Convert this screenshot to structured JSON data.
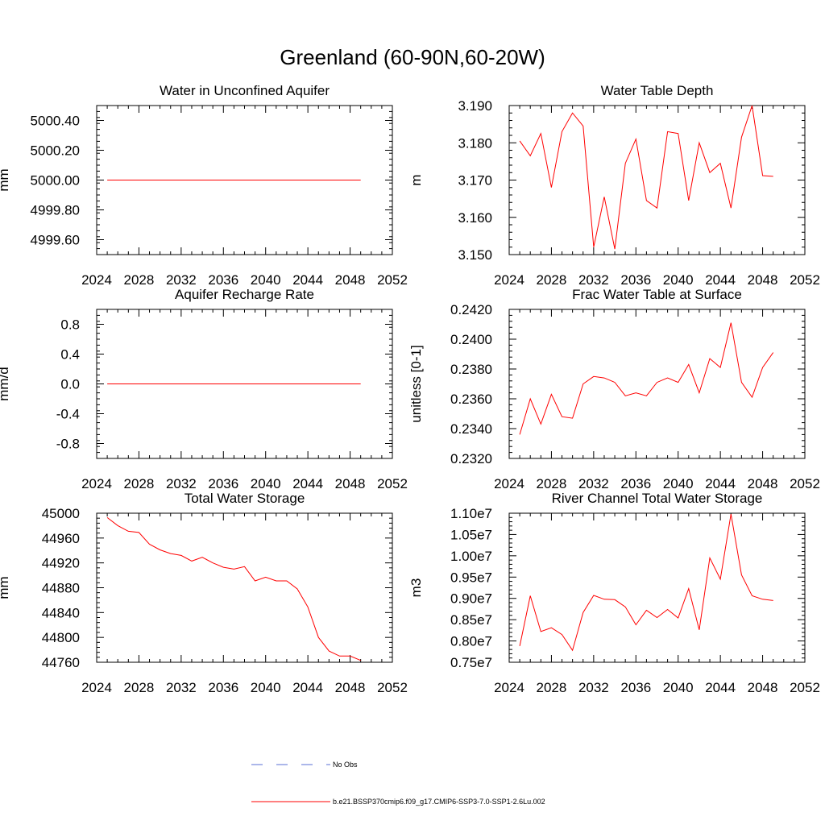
{
  "figure": {
    "title": "Greenland (60-90N,60-20W)",
    "legend": [
      {
        "label": "No Obs",
        "style": "dashed",
        "color": "#5a6fd6"
      },
      {
        "label": "b.e21.BSSP370cmip6.f09_g17.CMIP6-SSP3-7.0-SSP1-2.6Lu.002",
        "style": "solid",
        "color": "#ff0000"
      }
    ],
    "series_color": "#ff0000"
  },
  "chart_data": [
    {
      "type": "line",
      "title": "Water in Unconfined Aquifer",
      "ylabel": "mm",
      "xlim": [
        2024,
        2052
      ],
      "xticks": [
        "2024",
        "2028",
        "2032",
        "2036",
        "2040",
        "2044",
        "2048",
        "2052"
      ],
      "ylim": [
        4999.5,
        5000.5
      ],
      "yticks": [
        "4999.60",
        "4999.80",
        "5000.00",
        "5000.20",
        "5000.40"
      ],
      "x": [
        2025,
        2026,
        2027,
        2028,
        2029,
        2030,
        2031,
        2032,
        2033,
        2034,
        2035,
        2036,
        2037,
        2038,
        2039,
        2040,
        2041,
        2042,
        2043,
        2044,
        2045,
        2046,
        2047,
        2048,
        2049
      ],
      "values": [
        5000,
        5000,
        5000,
        5000,
        5000,
        5000,
        5000,
        5000,
        5000,
        5000,
        5000,
        5000,
        5000,
        5000,
        5000,
        5000,
        5000,
        5000,
        5000,
        5000,
        5000,
        5000,
        5000,
        5000,
        5000
      ]
    },
    {
      "type": "line",
      "title": "Water Table Depth",
      "ylabel": "m",
      "xlim": [
        2024,
        2052
      ],
      "xticks": [
        "2024",
        "2028",
        "2032",
        "2036",
        "2040",
        "2044",
        "2048",
        "2052"
      ],
      "ylim": [
        3.15,
        3.19
      ],
      "yticks": [
        "3.150",
        "3.160",
        "3.170",
        "3.180",
        "3.190"
      ],
      "x": [
        2025,
        2026,
        2027,
        2028,
        2029,
        2030,
        2031,
        2032,
        2033,
        2034,
        2035,
        2036,
        2037,
        2038,
        2039,
        2040,
        2041,
        2042,
        2043,
        2044,
        2045,
        2046,
        2047,
        2048,
        2049
      ],
      "values": [
        3.1805,
        3.1765,
        3.1825,
        3.168,
        3.183,
        3.188,
        3.1845,
        3.152,
        3.1655,
        3.1515,
        3.1745,
        3.181,
        3.1645,
        3.1625,
        3.183,
        3.1825,
        3.1645,
        3.18,
        3.172,
        3.1745,
        3.1625,
        3.1815,
        3.19,
        3.1712,
        3.171
      ]
    },
    {
      "type": "line",
      "title": "Aquifer Recharge Rate",
      "ylabel": "mm/d",
      "xlim": [
        2024,
        2052
      ],
      "xticks": [
        "2024",
        "2028",
        "2032",
        "2036",
        "2040",
        "2044",
        "2048",
        "2052"
      ],
      "ylim": [
        -1.0,
        1.0
      ],
      "yticks": [
        "-0.8",
        "-0.4",
        "0.0",
        "0.4",
        "0.8"
      ],
      "x": [
        2025,
        2026,
        2027,
        2028,
        2029,
        2030,
        2031,
        2032,
        2033,
        2034,
        2035,
        2036,
        2037,
        2038,
        2039,
        2040,
        2041,
        2042,
        2043,
        2044,
        2045,
        2046,
        2047,
        2048,
        2049
      ],
      "values": [
        0,
        0,
        0,
        0,
        0,
        0,
        0,
        0,
        0,
        0,
        0,
        0,
        0,
        0,
        0,
        0,
        0,
        0,
        0,
        0,
        0,
        0,
        0,
        0,
        0
      ]
    },
    {
      "type": "line",
      "title": "Frac Water Table at Surface",
      "ylabel": "unitless [0-1]",
      "xlim": [
        2024,
        2052
      ],
      "xticks": [
        "2024",
        "2028",
        "2032",
        "2036",
        "2040",
        "2044",
        "2048",
        "2052"
      ],
      "ylim": [
        0.232,
        0.242
      ],
      "yticks": [
        "0.2320",
        "0.2340",
        "0.2360",
        "0.2380",
        "0.2400",
        "0.2420"
      ],
      "x": [
        2025,
        2026,
        2027,
        2028,
        2029,
        2030,
        2031,
        2032,
        2033,
        2034,
        2035,
        2036,
        2037,
        2038,
        2039,
        2040,
        2041,
        2042,
        2043,
        2044,
        2045,
        2046,
        2047,
        2048,
        2049
      ],
      "values": [
        0.2336,
        0.236,
        0.2343,
        0.2363,
        0.2348,
        0.2347,
        0.237,
        0.2375,
        0.2374,
        0.2371,
        0.2362,
        0.2364,
        0.2362,
        0.2371,
        0.2374,
        0.2371,
        0.2383,
        0.2364,
        0.2387,
        0.2381,
        0.2411,
        0.2371,
        0.2361,
        0.2381,
        0.2391
      ]
    },
    {
      "type": "line",
      "title": "Total Water Storage",
      "ylabel": "mm",
      "xlim": [
        2024,
        2052
      ],
      "xticks": [
        "2024",
        "2028",
        "2032",
        "2036",
        "2040",
        "2044",
        "2048",
        "2052"
      ],
      "ylim": [
        44760,
        45000
      ],
      "yticks": [
        "44760",
        "44800",
        "44840",
        "44880",
        "44920",
        "44960",
        "45000"
      ],
      "x": [
        2025,
        2026,
        2027,
        2028,
        2029,
        2030,
        2031,
        2032,
        2033,
        2034,
        2035,
        2036,
        2037,
        2038,
        2039,
        2040,
        2041,
        2042,
        2043,
        2044,
        2045,
        2046,
        2047,
        2048,
        2049
      ],
      "values": [
        44993,
        44980,
        44971,
        44969,
        44950,
        44941,
        44935,
        44932,
        44923,
        44929,
        44920,
        44913,
        44910,
        44914,
        44891,
        44897,
        44891,
        44891,
        44878,
        44849,
        44800,
        44778,
        44770,
        44770,
        44763
      ]
    },
    {
      "type": "line",
      "title": "River Channel Total Water Storage",
      "ylabel": "m3",
      "xlim": [
        2024,
        2052
      ],
      "xticks": [
        "2024",
        "2028",
        "2032",
        "2036",
        "2040",
        "2044",
        "2048",
        "2052"
      ],
      "ylim": [
        7500000,
        11000000
      ],
      "yticks": [
        "0.75e7",
        "0.80e7",
        "0.85e7",
        "0.90e7",
        "0.95e7",
        "1.00e7",
        "1.05e7",
        "1.10e7"
      ],
      "x": [
        2025,
        2026,
        2027,
        2028,
        2029,
        2030,
        2031,
        2032,
        2033,
        2034,
        2035,
        2036,
        2037,
        2038,
        2039,
        2040,
        2041,
        2042,
        2043,
        2044,
        2045,
        2046,
        2047,
        2048,
        2049
      ],
      "values": [
        7880000,
        9060000,
        8220000,
        8310000,
        8150000,
        7780000,
        8670000,
        9070000,
        8980000,
        8970000,
        8800000,
        8380000,
        8720000,
        8550000,
        8740000,
        8540000,
        9230000,
        8260000,
        9950000,
        9450000,
        10980000,
        9550000,
        9060000,
        8980000,
        8950000
      ]
    }
  ]
}
